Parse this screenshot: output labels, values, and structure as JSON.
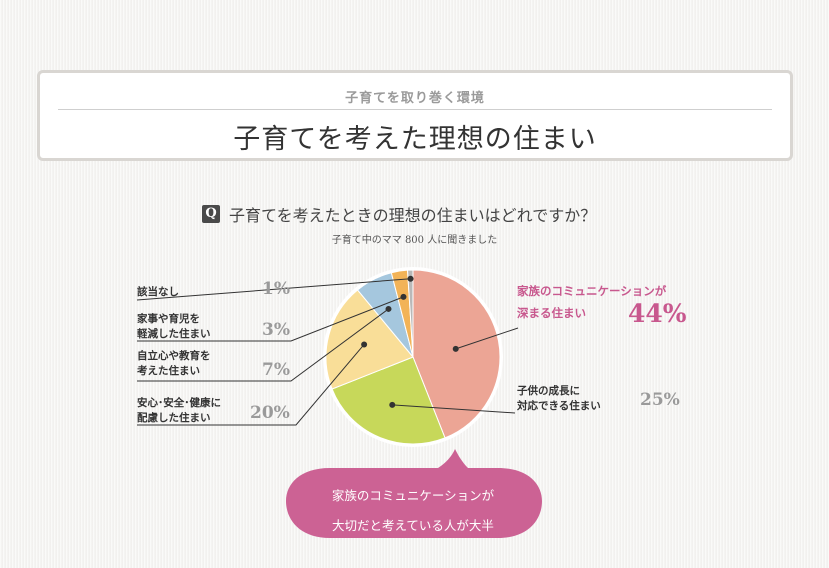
{
  "header": {
    "subtitle": "子育てを取り巻く環境",
    "title": "子育てを考えた理想の住まい"
  },
  "question": {
    "badge": "Q",
    "text": "子育てを考えたときの理想の住まいはどれですか？",
    "note": "子育て中のママ 800 人に聞きました"
  },
  "chart_data": {
    "type": "pie",
    "title": "子育てを考えたときの理想の住まいはどれですか？",
    "slices": [
      {
        "label": "家族のコミュニケーションが深まる住まい",
        "value": 44,
        "display": "44%",
        "color": "#eca595"
      },
      {
        "label": "子供の成長に対応できる住まい",
        "value": 25,
        "display": "25%",
        "color": "#c7d85a"
      },
      {
        "label": "安心・安全・健康に配慮した住まい",
        "value": 20,
        "display": "20%",
        "color": "#f9de98"
      },
      {
        "label": "自立心や教育を考えた住まい",
        "value": 7,
        "display": "7%",
        "color": "#a5c7de"
      },
      {
        "label": "家事や育児を軽減した住まい",
        "value": 3,
        "display": "3%",
        "color": "#f2b357"
      },
      {
        "label": "該当なし",
        "value": 1,
        "display": "1%",
        "color": "#b9b9b9"
      }
    ]
  },
  "labels": {
    "family_l1": "家族のコミュニケーションが",
    "family_l2": "深まる住まい",
    "family_pct": "44%",
    "growth_l1": "子供の成長に",
    "growth_l2": "対応できる住まい",
    "growth_pct": "25%",
    "safety_l1": "安心･安全･健康に",
    "safety_l2": "配慮した住まい",
    "safety_pct": "20%",
    "indep_l1": "自立心や教育を",
    "indep_l2": "考えた住まい",
    "indep_pct": "7%",
    "chores_l1": "家事や育児を",
    "chores_l2": "軽減した住まい",
    "chores_pct": "3%",
    "none": "該当なし",
    "none_pct": "1%"
  },
  "bubble": {
    "line1": "家族のコミュニケーションが",
    "line2": "大切だと考えている人が大半",
    "color": "#cc6294"
  }
}
